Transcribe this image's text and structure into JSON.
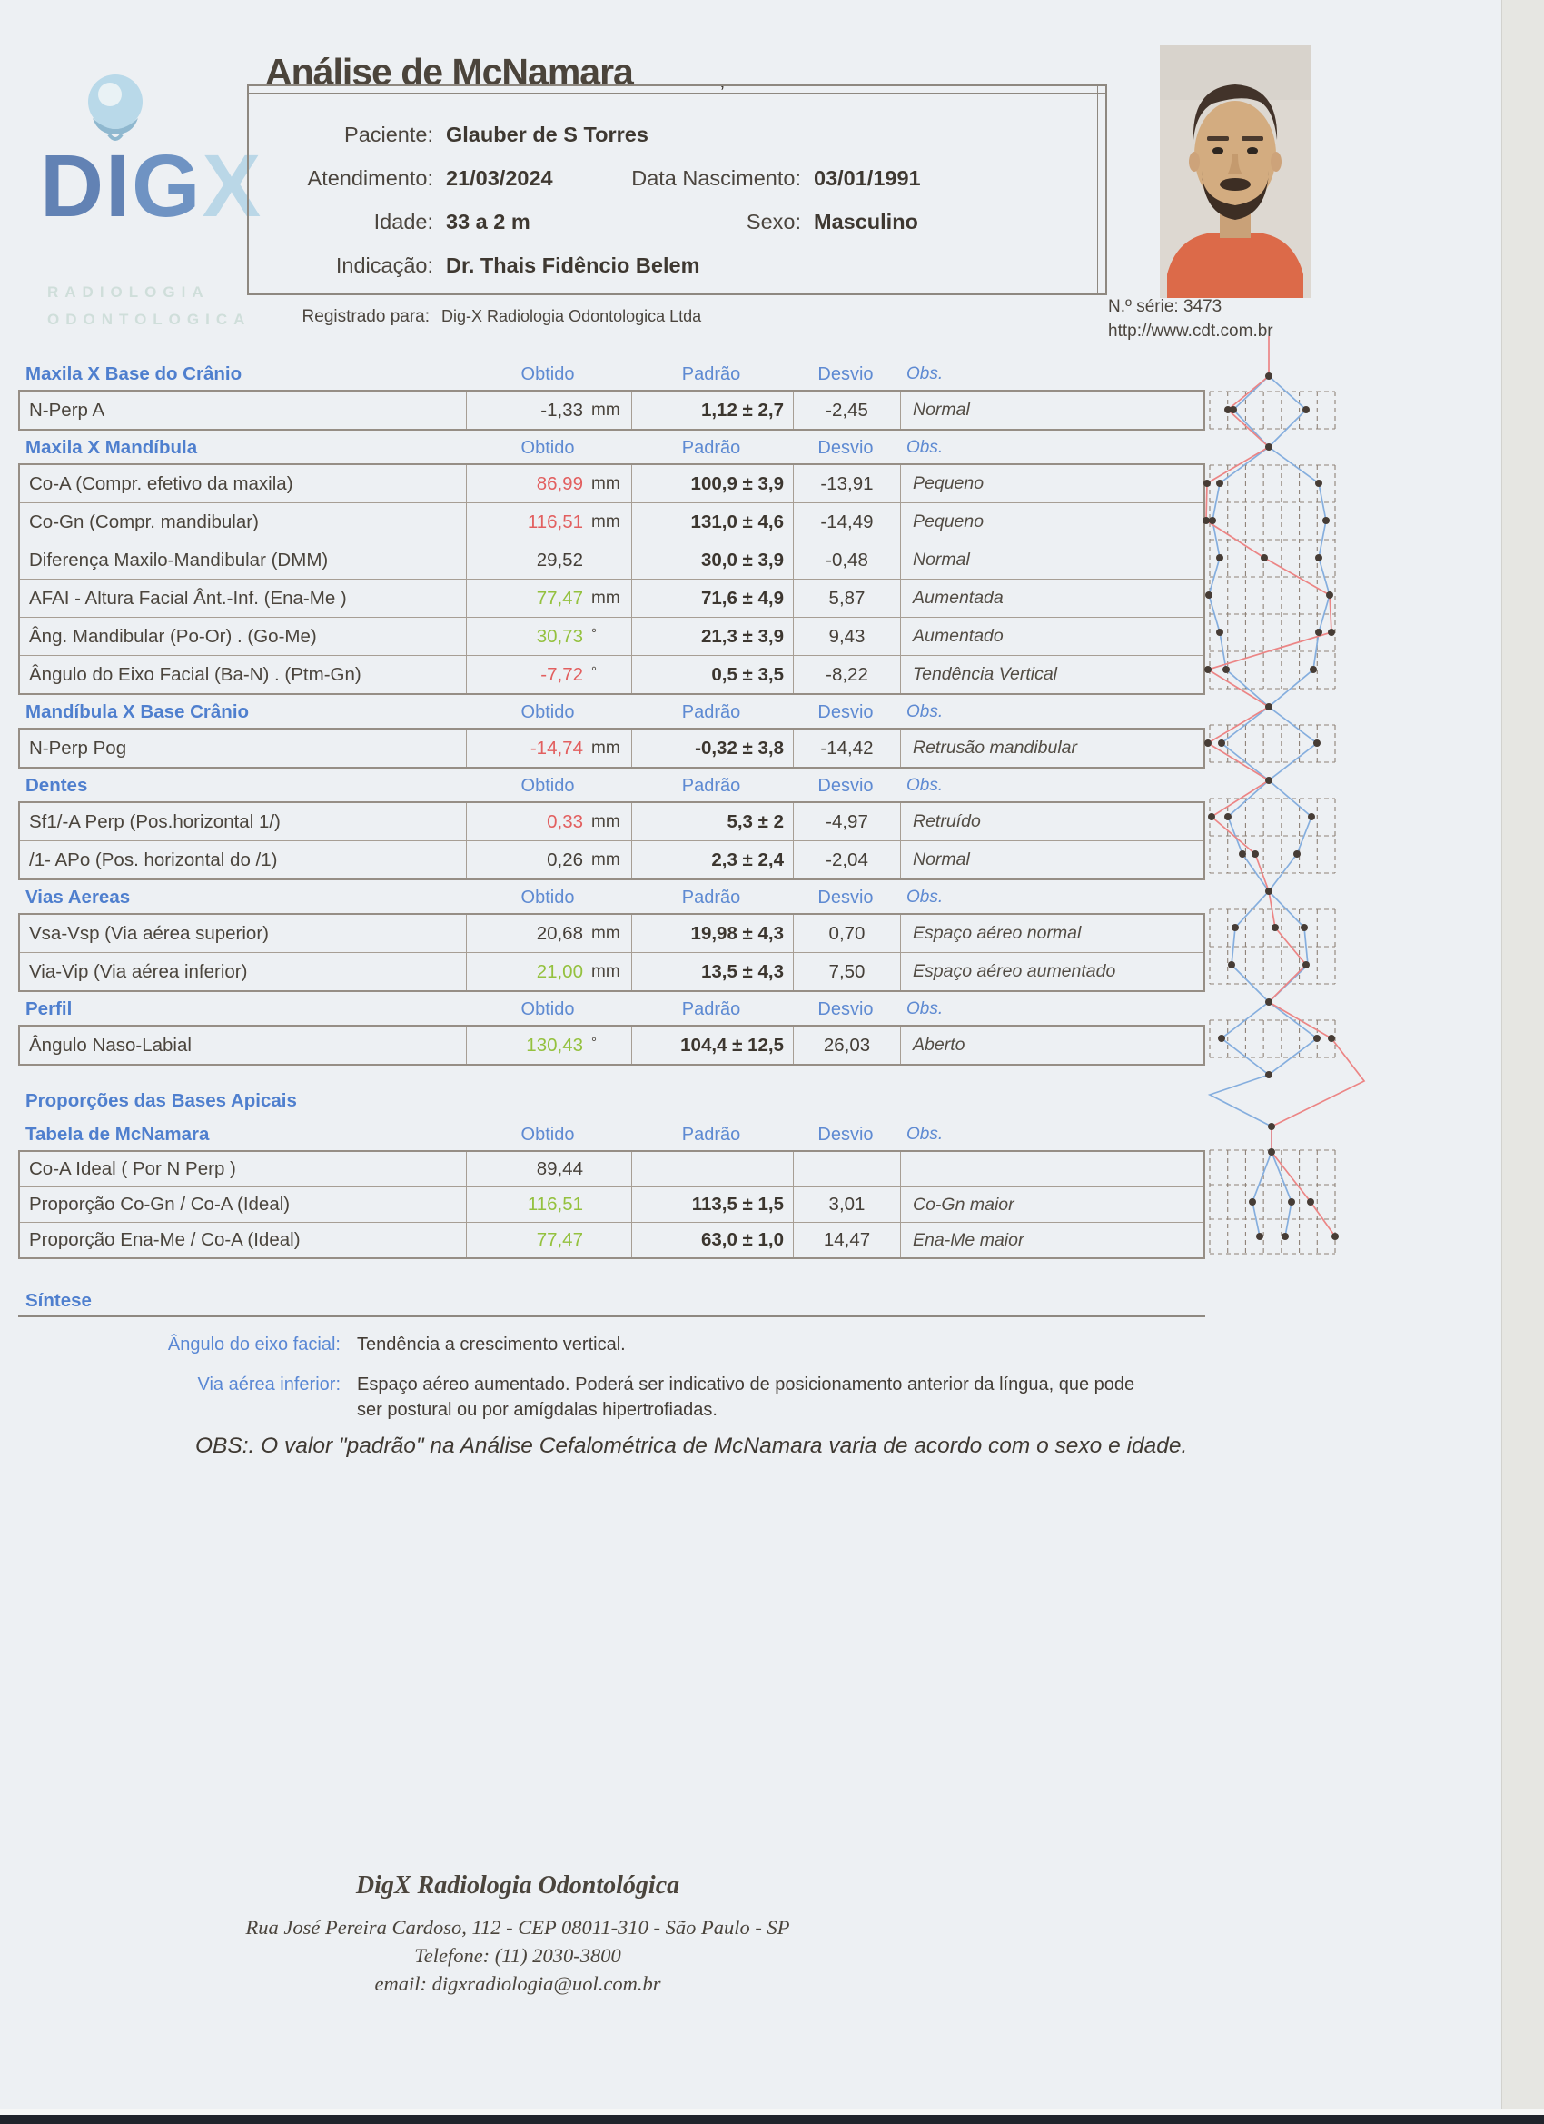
{
  "header": {
    "title": "Análise de McNamara",
    "serial": "N.º série: 3473",
    "website": "http://www.cdt.com.br",
    "mark": "ʼ"
  },
  "logo": {
    "word_di": "DI",
    "word_g": "G",
    "word_x": "X",
    "sub1": "RADIOLOGIA",
    "sub2": "ODONTOLOGICA",
    "ball_color": "#b9d9e9"
  },
  "patient": {
    "paciente_label": "Paciente:",
    "paciente": "Glauber de S Torres",
    "atendimento_label": "Atendimento:",
    "atendimento": "21/03/2024",
    "nascimento_label": "Data Nascimento:",
    "nascimento": "03/01/1991",
    "idade_label": "Idade:",
    "idade": "33 a 2 m",
    "sexo_label": "Sexo:",
    "sexo": "Masculino",
    "indicacao_label": "Indicação:",
    "indicacao": "Dr. Thais Fidêncio Belem",
    "registrado_label": "Registrado para:",
    "registrado": "Dig-X Radiologia Odontologica Ltda"
  },
  "columns": {
    "obtido": "Obtido",
    "padrao": "Padrão",
    "desvio": "Desvio",
    "obs": "Obs."
  },
  "sections": [
    {
      "title": "Maxila X Base do Crânio",
      "rows": [
        {
          "label": "N-Perp A",
          "obtido": "-1,33",
          "unit": "mm",
          "color": "dark",
          "padrao": "1,12 ± 2,7",
          "desvio": "-2,45",
          "obs": "Normal"
        }
      ]
    },
    {
      "title": "Maxila X Mandíbula",
      "rows": [
        {
          "label": "Co-A (Compr. efetivo da maxila)",
          "obtido": "86,99",
          "unit": "mm",
          "color": "red",
          "padrao": "100,9 ± 3,9",
          "desvio": "-13,91",
          "obs": "Pequeno"
        },
        {
          "label": "Co-Gn (Compr. mandibular)",
          "obtido": "116,51",
          "unit": "mm",
          "color": "red",
          "padrao": "131,0 ± 4,6",
          "desvio": "-14,49",
          "obs": "Pequeno"
        },
        {
          "label": "Diferença Maxilo-Mandibular (DMM)",
          "obtido": "29,52",
          "unit": "",
          "color": "dark",
          "padrao": "30,0 ± 3,9",
          "desvio": "-0,48",
          "obs": "Normal"
        },
        {
          "label": "AFAI - Altura Facial Ânt.-Inf. (Ena-Me )",
          "obtido": "77,47",
          "unit": "mm",
          "color": "green",
          "padrao": "71,6 ± 4,9",
          "desvio": "5,87",
          "obs": "Aumentada"
        },
        {
          "label": "Âng. Mandibular (Po-Or) . (Go-Me)",
          "obtido": "30,73",
          "unit": "°",
          "color": "green",
          "padrao": "21,3 ± 3,9",
          "desvio": "9,43",
          "obs": "Aumentado"
        },
        {
          "label": "Ângulo do Eixo Facial  (Ba-N) . (Ptm-Gn)",
          "obtido": "-7,72",
          "unit": "°",
          "color": "red",
          "padrao": "0,5 ± 3,5",
          "desvio": "-8,22",
          "obs": "Tendência Vertical"
        }
      ]
    },
    {
      "title": "Mandíbula X Base Crânio",
      "rows": [
        {
          "label": "N-Perp Pog",
          "obtido": "-14,74",
          "unit": "mm",
          "color": "red",
          "padrao": "-0,32 ± 3,8",
          "desvio": "-14,42",
          "obs": "Retrusão mandibular"
        }
      ]
    },
    {
      "title": "Dentes",
      "rows": [
        {
          "label": "Sf1/-A Perp (Pos.horizontal 1/)",
          "obtido": "0,33",
          "unit": "mm",
          "color": "red",
          "padrao": "5,3 ± 2",
          "desvio": "-4,97",
          "obs": "Retruído"
        },
        {
          "label": "/1- APo  (Pos. horizontal do /1)",
          "obtido": "0,26",
          "unit": "mm",
          "color": "dark",
          "padrao": "2,3 ± 2,4",
          "desvio": "-2,04",
          "obs": "Normal"
        }
      ]
    },
    {
      "title": "Vias Aereas",
      "rows": [
        {
          "label": "Vsa-Vsp (Via aérea superior)",
          "obtido": "20,68",
          "unit": "mm",
          "color": "dark",
          "padrao": "19,98 ± 4,3",
          "desvio": "0,70",
          "obs": "Espaço aéreo normal"
        },
        {
          "label": "Via-Vip (Via aérea inferior)",
          "obtido": "21,00",
          "unit": "mm",
          "color": "green",
          "padrao": "13,5 ± 4,3",
          "desvio": "7,50",
          "obs": "Espaço aéreo aumentado"
        }
      ]
    },
    {
      "title": "Perfil",
      "rows": [
        {
          "label": "Ângulo Naso-Labial",
          "obtido": "130,43",
          "unit": "°",
          "color": "green",
          "padrao": "104,4 ± 12,5",
          "desvio": "26,03",
          "obs": "Aberto"
        }
      ]
    }
  ],
  "proporcoes": {
    "title": "Proporções das Bases Apicais",
    "subtitle": "Tabela de McNamara",
    "rows": [
      {
        "label": "Co-A  Ideal  ( Por N Perp )",
        "obtido": "89,44",
        "unit": "",
        "color": "dark",
        "padrao": "",
        "desvio": "",
        "obs": ""
      },
      {
        "label": "Proporção Co-Gn / Co-A (Ideal)",
        "obtido": "116,51",
        "unit": "",
        "color": "green",
        "padrao": "113,5 ± 1,5",
        "desvio": "3,01",
        "obs": "Co-Gn maior"
      },
      {
        "label": "Proporção Ena-Me / Co-A (Ideal)",
        "obtido": "77,47",
        "unit": "",
        "color": "green",
        "padrao": "63,0 ± 1,0",
        "desvio": "14,47",
        "obs": "Ena-Me maior"
      }
    ]
  },
  "sintese": {
    "title": "Síntese",
    "items": [
      {
        "label": "Ângulo do eixo facial:",
        "text": "Tendência a crescimento vertical."
      },
      {
        "label": "Via aérea inferior:",
        "text": "Espaço aéreo aumentado. Poderá ser indicativo de posicionamento anterior da língua, que pode ser postural ou por amígdalas hipertrofiadas."
      }
    ],
    "obs": "OBS:. O valor \"padrão\" na  Análise Cefalométrica de McNamara varia de acordo com o sexo e idade."
  },
  "footer": {
    "company": "DigX Radiologia Odontológica",
    "address": "Rua José Pereira Cardoso, 112 - CEP 08011-310 - São Paulo - SP",
    "phone": "Telefone: (11) 2030-3800",
    "email": "email: digxradiologia@uol.com.br"
  },
  "colors": {
    "section_title_blue": "#4f7fce",
    "value_red": "#e25f5f",
    "value_green": "#94c13e",
    "chart_blue": "#85aede",
    "chart_red": "#ec8585",
    "paper": "#edf0f3"
  }
}
